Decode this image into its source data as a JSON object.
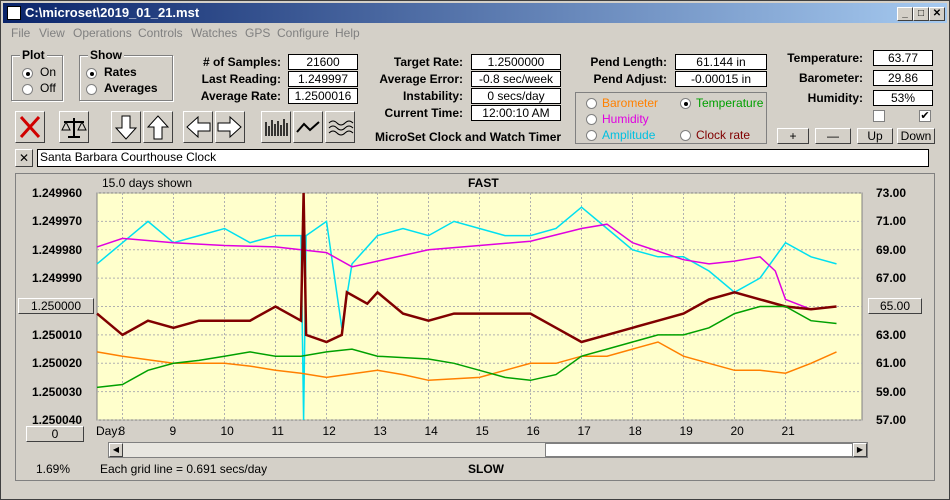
{
  "window": {
    "title": "C:\\microset\\2019_01_21.mst"
  },
  "menu": [
    "File",
    "View",
    "Operations",
    "Controls",
    "Watches",
    "GPS",
    "Configure",
    "Help"
  ],
  "plot_group": {
    "title": "Plot",
    "options": [
      {
        "label": "On",
        "selected": true
      },
      {
        "label": "Off",
        "selected": false
      }
    ]
  },
  "show_group": {
    "title": "Show",
    "options": [
      {
        "label": "Rates",
        "selected": true
      },
      {
        "label": "Averages",
        "selected": false
      }
    ]
  },
  "stats": {
    "samples": {
      "label": "# of Samples:",
      "value": "21600"
    },
    "last_reading": {
      "label": "Last Reading:",
      "value": "1.249997"
    },
    "average_rate": {
      "label": "Average Rate:",
      "value": "1.2500016"
    },
    "target_rate": {
      "label": "Target Rate:",
      "value": "1.2500000"
    },
    "average_error": {
      "label": "Average Error:",
      "value": "-0.8 sec/week"
    },
    "instability": {
      "label": "Instability:",
      "value": "0 secs/day"
    },
    "current_time": {
      "label": "Current Time:",
      "value": "12:00:10 AM"
    },
    "pend_length": {
      "label": "Pend Length:",
      "value": "61.144 in"
    },
    "pend_adjust": {
      "label": "Pend Adjust:",
      "value": "-0.00015 in"
    },
    "temperature": {
      "label": "Temperature:",
      "value": "63.77"
    },
    "barometer": {
      "label": "Barometer:",
      "value": "29.86"
    },
    "humidity": {
      "label": "Humidity:",
      "value": "53%"
    }
  },
  "app_label": "MicroSet Clock and Watch Timer",
  "sensor_select": [
    {
      "label": "Barometer",
      "color": "#ff8000",
      "selected": false
    },
    {
      "label": "Temperature",
      "color": "#00a000",
      "selected": true
    },
    {
      "label": "Humidity",
      "color": "#e000e0",
      "selected": false
    },
    {
      "label": "Clock rate",
      "color": "#800000",
      "selected": false
    },
    {
      "label": "Amplitude",
      "color": "#00c0e0",
      "selected": false
    }
  ],
  "scale_buttons": {
    "plus": "+",
    "minus": "—",
    "up": "Up",
    "down": "Down"
  },
  "checkboxes": [
    {
      "checked": false
    },
    {
      "checked": true
    }
  ],
  "clock_name": "Santa Barbara Courthouse Clock",
  "close_small": "✕",
  "chart_header": {
    "days_shown": "15.0 days shown",
    "top": "FAST",
    "bottom": "SLOW",
    "grid_note": "Each grid line = 0.691 secs/day",
    "percent": "1.69%",
    "day_label": "Day:"
  },
  "center_left_button": "1.250000",
  "center_right_button": "65.00",
  "zero_button": "0",
  "chart_data": {
    "type": "line",
    "x": {
      "label": "Day:",
      "ticks": [
        8,
        9,
        10,
        11,
        12,
        13,
        14,
        15,
        16,
        17,
        18,
        19,
        20,
        21
      ],
      "range": [
        7.5,
        22.5
      ]
    },
    "y_left": {
      "ticks": [
        "1.249960",
        "1.249970",
        "1.249980",
        "1.249990",
        "1.250000",
        "1.250010",
        "1.250020",
        "1.250030",
        "1.250040"
      ],
      "range": [
        1.24996,
        1.25004
      ],
      "inverted": true
    },
    "y_right": {
      "ticks": [
        "73.00",
        "71.00",
        "69.00",
        "67.00",
        "65.00",
        "63.00",
        "61.00",
        "59.00",
        "57.00"
      ],
      "range": [
        57,
        73
      ]
    },
    "series": [
      {
        "color": "#00e0f0",
        "points": [
          [
            7.5,
            68
          ],
          [
            8,
            69.5
          ],
          [
            8.5,
            71
          ],
          [
            9,
            69.5
          ],
          [
            9.5,
            70
          ],
          [
            10,
            70.5
          ],
          [
            10.5,
            69.5
          ],
          [
            11,
            70
          ],
          [
            11.5,
            70
          ],
          [
            11.55,
            57
          ],
          [
            11.6,
            70
          ],
          [
            12,
            71
          ],
          [
            12.3,
            63.5
          ],
          [
            12.5,
            68
          ],
          [
            13,
            70
          ],
          [
            13.5,
            70.5
          ],
          [
            14,
            70
          ],
          [
            14.5,
            71
          ],
          [
            15,
            70.5
          ],
          [
            15.5,
            70
          ],
          [
            16,
            70
          ],
          [
            16.5,
            70.5
          ],
          [
            17,
            72
          ],
          [
            17.5,
            70.5
          ],
          [
            18,
            69
          ],
          [
            18.5,
            68.5
          ],
          [
            19,
            68.5
          ],
          [
            19.5,
            67.5
          ],
          [
            20,
            66
          ],
          [
            20.5,
            67
          ],
          [
            21,
            69.5
          ],
          [
            21.5,
            68.5
          ],
          [
            22,
            68
          ]
        ]
      },
      {
        "color": "#e000e0",
        "points": [
          [
            7.5,
            69.2
          ],
          [
            8,
            69.8
          ],
          [
            9,
            69.5
          ],
          [
            10,
            69.3
          ],
          [
            11,
            69.2
          ],
          [
            12,
            68.8
          ],
          [
            12.5,
            67.8
          ],
          [
            13,
            68.2
          ],
          [
            14,
            69
          ],
          [
            15,
            69.3
          ],
          [
            16,
            69.6
          ],
          [
            17,
            70.5
          ],
          [
            17.5,
            70.8
          ],
          [
            18,
            69.5
          ],
          [
            19,
            68.3
          ],
          [
            19.5,
            68
          ],
          [
            20,
            68.2
          ],
          [
            20.5,
            68.5
          ],
          [
            20.8,
            67.5
          ],
          [
            21,
            65.5
          ],
          [
            21.5,
            64.8
          ],
          [
            22,
            65
          ]
        ]
      },
      {
        "color": "#800000",
        "points": [
          [
            7.5,
            64.5
          ],
          [
            8,
            63
          ],
          [
            8.5,
            64
          ],
          [
            9,
            63.5
          ],
          [
            9.5,
            64
          ],
          [
            10,
            64
          ],
          [
            10.5,
            64
          ],
          [
            11,
            65
          ],
          [
            11.5,
            64
          ],
          [
            11.55,
            73
          ],
          [
            11.6,
            63
          ],
          [
            12,
            62.5
          ],
          [
            12.3,
            63
          ],
          [
            12.4,
            66
          ],
          [
            12.8,
            65.2
          ],
          [
            13,
            66
          ],
          [
            13.5,
            64.5
          ],
          [
            14,
            64
          ],
          [
            14.5,
            64.5
          ],
          [
            15,
            64.5
          ],
          [
            16,
            64.5
          ],
          [
            16.5,
            63.5
          ],
          [
            17,
            62.5
          ],
          [
            17.5,
            63
          ],
          [
            18,
            63.5
          ],
          [
            18.5,
            64
          ],
          [
            19,
            64.5
          ],
          [
            19.5,
            65.5
          ],
          [
            20,
            66
          ],
          [
            20.5,
            65.5
          ],
          [
            21,
            65
          ],
          [
            21.5,
            64.8
          ],
          [
            22,
            65
          ]
        ]
      },
      {
        "color": "#ff8000",
        "points": [
          [
            7.5,
            61.8
          ],
          [
            8,
            61.5
          ],
          [
            9,
            61
          ],
          [
            10,
            61
          ],
          [
            10.5,
            60.8
          ],
          [
            11,
            60.5
          ],
          [
            11.5,
            60.3
          ],
          [
            12,
            60
          ],
          [
            13,
            60.5
          ],
          [
            13.5,
            60.2
          ],
          [
            14,
            59.8
          ],
          [
            15,
            60
          ],
          [
            15.5,
            60.5
          ],
          [
            16,
            61
          ],
          [
            16.5,
            61
          ],
          [
            17,
            61.5
          ],
          [
            17.5,
            61.5
          ],
          [
            18,
            62
          ],
          [
            18.5,
            62.5
          ],
          [
            19,
            61.5
          ],
          [
            19.5,
            61
          ],
          [
            20,
            60.5
          ],
          [
            20.5,
            60.5
          ],
          [
            21,
            60.3
          ],
          [
            21.5,
            61
          ],
          [
            22,
            61.8
          ]
        ]
      },
      {
        "color": "#00a000",
        "points": [
          [
            7.5,
            59.3
          ],
          [
            8,
            59.5
          ],
          [
            8.5,
            60.5
          ],
          [
            9,
            61
          ],
          [
            9.5,
            61.2
          ],
          [
            10,
            61.5
          ],
          [
            10.5,
            61.8
          ],
          [
            11,
            61.5
          ],
          [
            11.5,
            61.5
          ],
          [
            12,
            61.8
          ],
          [
            12.5,
            62
          ],
          [
            13,
            61.5
          ],
          [
            14,
            61.3
          ],
          [
            14.5,
            61
          ],
          [
            15,
            60.5
          ],
          [
            15.5,
            60
          ],
          [
            16,
            59.8
          ],
          [
            16.5,
            60.2
          ],
          [
            17,
            61.5
          ],
          [
            17.5,
            62
          ],
          [
            18,
            62.5
          ],
          [
            18.5,
            63
          ],
          [
            19,
            63
          ],
          [
            19.5,
            63.5
          ],
          [
            20,
            64.5
          ],
          [
            20.5,
            65
          ],
          [
            21,
            65
          ],
          [
            21.5,
            64
          ],
          [
            22,
            63.8
          ]
        ]
      }
    ]
  }
}
